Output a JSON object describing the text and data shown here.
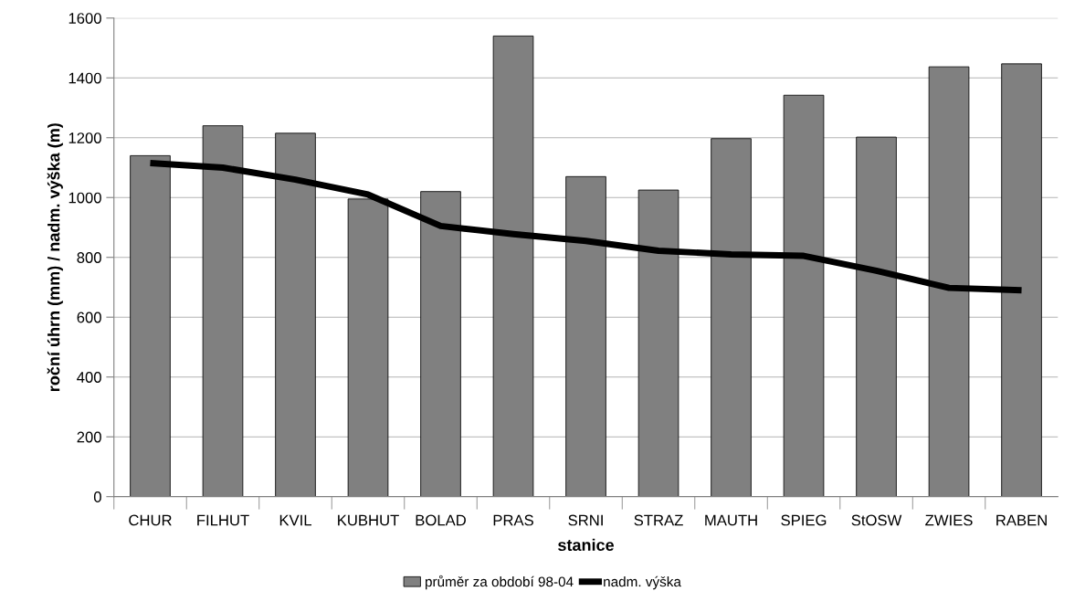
{
  "chart_data": {
    "type": "bar",
    "xlabel": "stanice",
    "ylabel": "roční úhrn (mm) / nadm. výška (m)",
    "categories": [
      "CHUR",
      "FILHUT",
      "KVIL",
      "KUBHUT",
      "BOLAD",
      "PRAS",
      "SRNI",
      "STRAZ",
      "MAUTH",
      "SPIEG",
      "StOSW",
      "ZWIES",
      "RABEN"
    ],
    "series": [
      {
        "name": "průměr za období 98-04",
        "color": "#808080",
        "values": [
          1140,
          1240,
          1215,
          995,
          1020,
          1540,
          1070,
          1025,
          1197,
          1342,
          1202,
          1437,
          1447
        ]
      },
      {
        "name": "nadm. výška",
        "type": "line",
        "color": "#000000",
        "values": [
          1115,
          1100,
          1060,
          1010,
          905,
          878,
          855,
          822,
          810,
          805,
          755,
          698,
          690
        ]
      }
    ],
    "ylim": [
      0,
      1600
    ],
    "yticks": [
      0,
      200,
      400,
      600,
      800,
      1000,
      1200,
      1400,
      1600
    ],
    "grid": "y",
    "legend": "bottom",
    "marker": "none",
    "line_style": "solid"
  }
}
